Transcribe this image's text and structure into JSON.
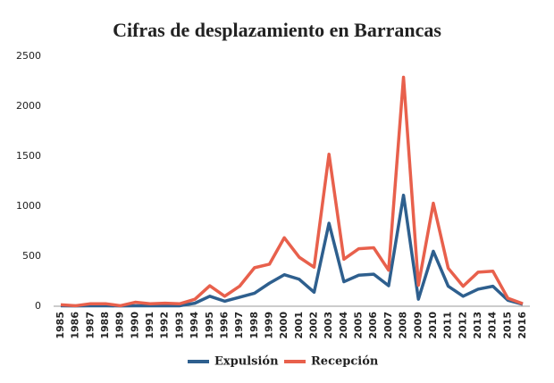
{
  "chart_data": {
    "type": "line",
    "title": "Cifras de desplazamiento en Barrancas",
    "categories": [
      "1985",
      "1986",
      "1987",
      "1988",
      "1989",
      "1990",
      "1991",
      "1992",
      "1993",
      "1994",
      "1995",
      "1996",
      "1997",
      "1998",
      "1999",
      "2000",
      "2001",
      "2002",
      "2003",
      "2004",
      "2005",
      "2006",
      "2007",
      "2008",
      "2009",
      "2010",
      "2011",
      "2012",
      "2013",
      "2014",
      "2015",
      "2016"
    ],
    "series": [
      {
        "name": "Expulsión",
        "color": "#2e5f8e",
        "values": [
          5,
          3,
          5,
          5,
          3,
          5,
          5,
          5,
          5,
          30,
          100,
          50,
          90,
          130,
          230,
          315,
          270,
          140,
          830,
          245,
          310,
          320,
          205,
          1110,
          70,
          550,
          200,
          100,
          170,
          200,
          60,
          20
        ]
      },
      {
        "name": "Recepción",
        "color": "#e8604c",
        "values": [
          15,
          5,
          25,
          25,
          5,
          40,
          25,
          30,
          25,
          70,
          205,
          100,
          200,
          385,
          420,
          685,
          490,
          390,
          1520,
          470,
          575,
          585,
          360,
          2290,
          210,
          1030,
          380,
          200,
          340,
          350,
          80,
          25
        ]
      }
    ],
    "ylim": [
      0,
      2500
    ],
    "yticks": [
      0,
      500,
      1000,
      1500,
      2000,
      2500
    ],
    "legend": "bottom"
  }
}
